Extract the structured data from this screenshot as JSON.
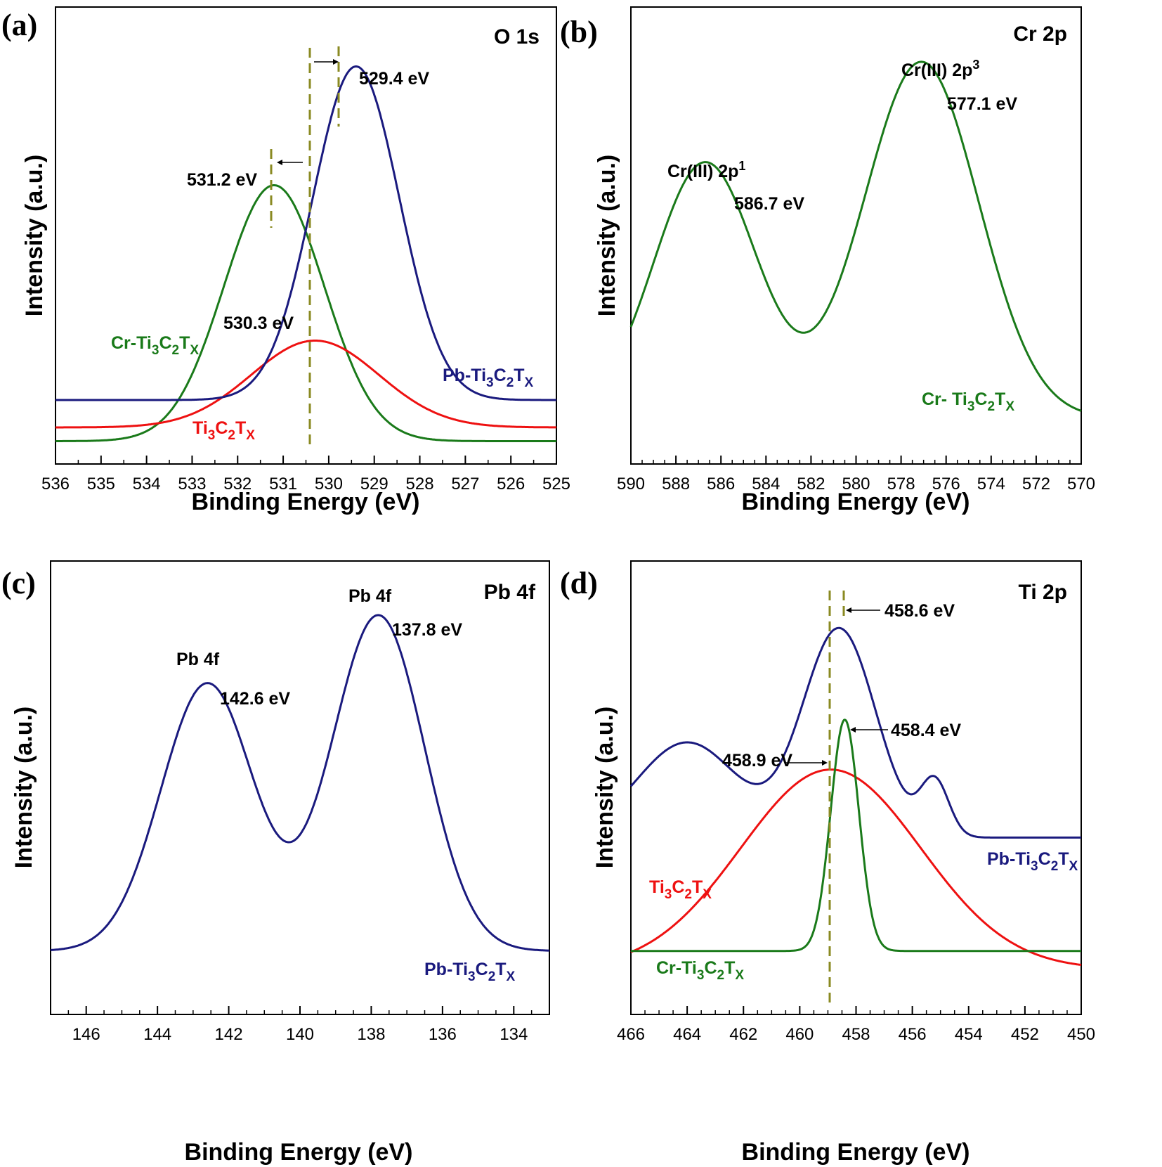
{
  "colors": {
    "navy": "#1a1a7e",
    "red": "#ee1111",
    "green": "#1a7a1a",
    "dash": "#8a8a22"
  },
  "chart_data": [
    {
      "type": "line",
      "panel": "(a)",
      "title": "O 1s",
      "xlabel": "Binding Energy (eV)",
      "ylabel": "Intensity (a.u.)",
      "xlim": [
        536,
        525
      ],
      "ylim": [
        0,
        100
      ],
      "xticks": [
        "536",
        "535",
        "534",
        "533",
        "532",
        "531",
        "530",
        "529",
        "528",
        "527",
        "526",
        "525"
      ],
      "series": [
        {
          "name": "Cr-Ti3C2Tx",
          "color": "#1a7a1a",
          "peaks": [
            {
              "x": 531.2,
              "y": 61
            }
          ],
          "baseline": 5
        },
        {
          "name": "Ti3C2Tx",
          "color": "#ee1111",
          "peaks": [
            {
              "x": 530.3,
              "y": 27
            }
          ],
          "baseline": 8
        },
        {
          "name": "Pb-Ti3C2Tx",
          "color": "#1a1a7e",
          "peaks": [
            {
              "x": 529.4,
              "y": 87
            }
          ],
          "baseline": 14
        }
      ],
      "labels": {
        "peak_navy": "529.4 eV",
        "peak_green": "531.2 eV",
        "peak_red": "530.3 eV",
        "series_green": {
          "a": "Cr-Ti",
          "b": "3",
          "c": "C",
          "d": "2",
          "e": "T",
          "f": "X"
        },
        "series_red": {
          "a": "Ti",
          "b": "3",
          "c": "C",
          "d": "2",
          "e": "T",
          "f": "X"
        },
        "series_navy": {
          "a": "Pb-Ti",
          "b": "3",
          "c": "C",
          "d": "2",
          "e": "T",
          "f": "X"
        }
      }
    },
    {
      "type": "line",
      "panel": "(b)",
      "title": "Cr 2p",
      "xlabel": "Binding Energy (eV)",
      "ylabel": "Intensity (a.u.)",
      "xlim": [
        590,
        570
      ],
      "ylim": [
        0,
        100
      ],
      "xticks": [
        "590",
        "588",
        "586",
        "584",
        "582",
        "580",
        "578",
        "576",
        "574",
        "572",
        "570"
      ],
      "series": [
        {
          "name": "Cr- Ti3C2Tx",
          "color": "#1a7a1a",
          "peaks": [
            {
              "x": 586.7,
              "y": 66
            },
            {
              "x": 577.1,
              "y": 88
            }
          ],
          "baseline": 10
        }
      ],
      "labels": {
        "peak1_name": {
          "a": "Cr(III) 2p",
          "b": "1"
        },
        "peak1_value": "586.7 eV",
        "peak2_name": {
          "a": "Cr(III) 2p",
          "b": "3"
        },
        "peak2_value": "577.1 eV",
        "series": {
          "a": "Cr- Ti",
          "b": "3",
          "c": "C",
          "d": "2",
          "e": "T",
          "f": "X"
        }
      }
    },
    {
      "type": "line",
      "panel": "(c)",
      "title": "Pb 4f",
      "xlabel": "Binding Energy (eV)",
      "ylabel": "Intensity (a.u.)",
      "xlim": [
        147,
        133
      ],
      "ylim": [
        0,
        100
      ],
      "xticks": [
        "146",
        "144",
        "142",
        "140",
        "138",
        "136",
        "134"
      ],
      "series": [
        {
          "name": "Pb-Ti3C2Tx",
          "color": "#1a1a7e",
          "peaks": [
            {
              "x": 142.6,
              "y": 73
            },
            {
              "x": 137.8,
              "y": 88
            }
          ],
          "baseline": 14
        }
      ],
      "labels": {
        "peak1_name": "Pb 4f",
        "peak1_value": "142.6 eV",
        "peak2_name": "Pb 4f",
        "peak2_value": "137.8 eV",
        "series": {
          "a": "Pb-Ti",
          "b": "3",
          "c": "C",
          "d": "2",
          "e": "T",
          "f": "X"
        }
      }
    },
    {
      "type": "line",
      "panel": "(d)",
      "title": "Ti 2p",
      "xlabel": "Binding Energy (eV)",
      "ylabel": "Intensity (a.u.)",
      "xlim": [
        466,
        450
      ],
      "ylim": [
        0,
        100
      ],
      "xticks": [
        "466",
        "464",
        "462",
        "460",
        "458",
        "456",
        "454",
        "452",
        "450"
      ],
      "series": [
        {
          "name": "Pb-Ti3C2Tx",
          "color": "#1a1a7e",
          "peaks": [
            {
              "x": 464.0,
              "y": 60
            },
            {
              "x": 458.6,
              "y": 85
            },
            {
              "x": 455.2,
              "y": 51
            }
          ],
          "baseline": 39
        },
        {
          "name": "Ti3C2Tx",
          "color": "#ee1111",
          "peaks": [
            {
              "x": 458.9,
              "y": 54
            }
          ],
          "baseline": 10
        },
        {
          "name": "Cr-Ti3C2Tx",
          "color": "#1a7a1a",
          "peaks": [
            {
              "x": 458.4,
              "y": 65
            }
          ],
          "baseline": 14
        }
      ],
      "labels": {
        "peak_navy": "458.6 eV",
        "peak_green": "458.4 eV",
        "peak_red": "458.9 eV",
        "series_navy": {
          "a": "Pb-Ti",
          "b": "3",
          "c": "C",
          "d": "2",
          "e": "T",
          "f": "X"
        },
        "series_red": {
          "a": "Ti",
          "b": "3",
          "c": "C",
          "d": "2",
          "e": "T",
          "f": "X"
        },
        "series_green": {
          "a": "Cr-Ti",
          "b": "3",
          "c": "C",
          "d": "2",
          "e": "T",
          "f": "X"
        }
      }
    }
  ]
}
